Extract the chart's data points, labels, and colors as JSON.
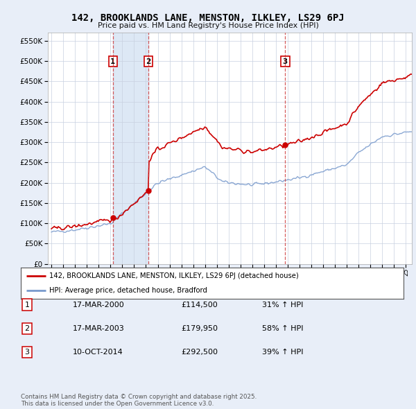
{
  "title": "142, BROOKLANDS LANE, MENSTON, ILKLEY, LS29 6PJ",
  "subtitle": "Price paid vs. HM Land Registry's House Price Index (HPI)",
  "ylim": [
    0,
    570000
  ],
  "yticks": [
    0,
    50000,
    100000,
    150000,
    200000,
    250000,
    300000,
    350000,
    400000,
    450000,
    500000,
    550000
  ],
  "xlim_start": 1994.7,
  "xlim_end": 2025.5,
  "background_color": "#e8eef8",
  "plot_bg_color": "#ffffff",
  "grid_color": "#c8d0e0",
  "red_line_color": "#cc0000",
  "blue_line_color": "#7799cc",
  "shade_color": "#dde8f5",
  "vline_color": "#cc3333",
  "annotation_bg": "#ffffff",
  "annotation_border": "#cc0000",
  "sales": [
    {
      "date_num": 2000.21,
      "price": 114500,
      "label": "1"
    },
    {
      "date_num": 2003.21,
      "price": 179950,
      "label": "2"
    },
    {
      "date_num": 2014.78,
      "price": 292500,
      "label": "3"
    }
  ],
  "sale_table": [
    {
      "num": "1",
      "date": "17-MAR-2000",
      "price": "£114,500",
      "change": "31% ↑ HPI"
    },
    {
      "num": "2",
      "date": "17-MAR-2003",
      "price": "£179,950",
      "change": "58% ↑ HPI"
    },
    {
      "num": "3",
      "date": "10-OCT-2014",
      "price": "£292,500",
      "change": "39% ↑ HPI"
    }
  ],
  "legend_label_red": "142, BROOKLANDS LANE, MENSTON, ILKLEY, LS29 6PJ (detached house)",
  "legend_label_blue": "HPI: Average price, detached house, Bradford",
  "footer": "Contains HM Land Registry data © Crown copyright and database right 2025.\nThis data is licensed under the Open Government Licence v3.0."
}
